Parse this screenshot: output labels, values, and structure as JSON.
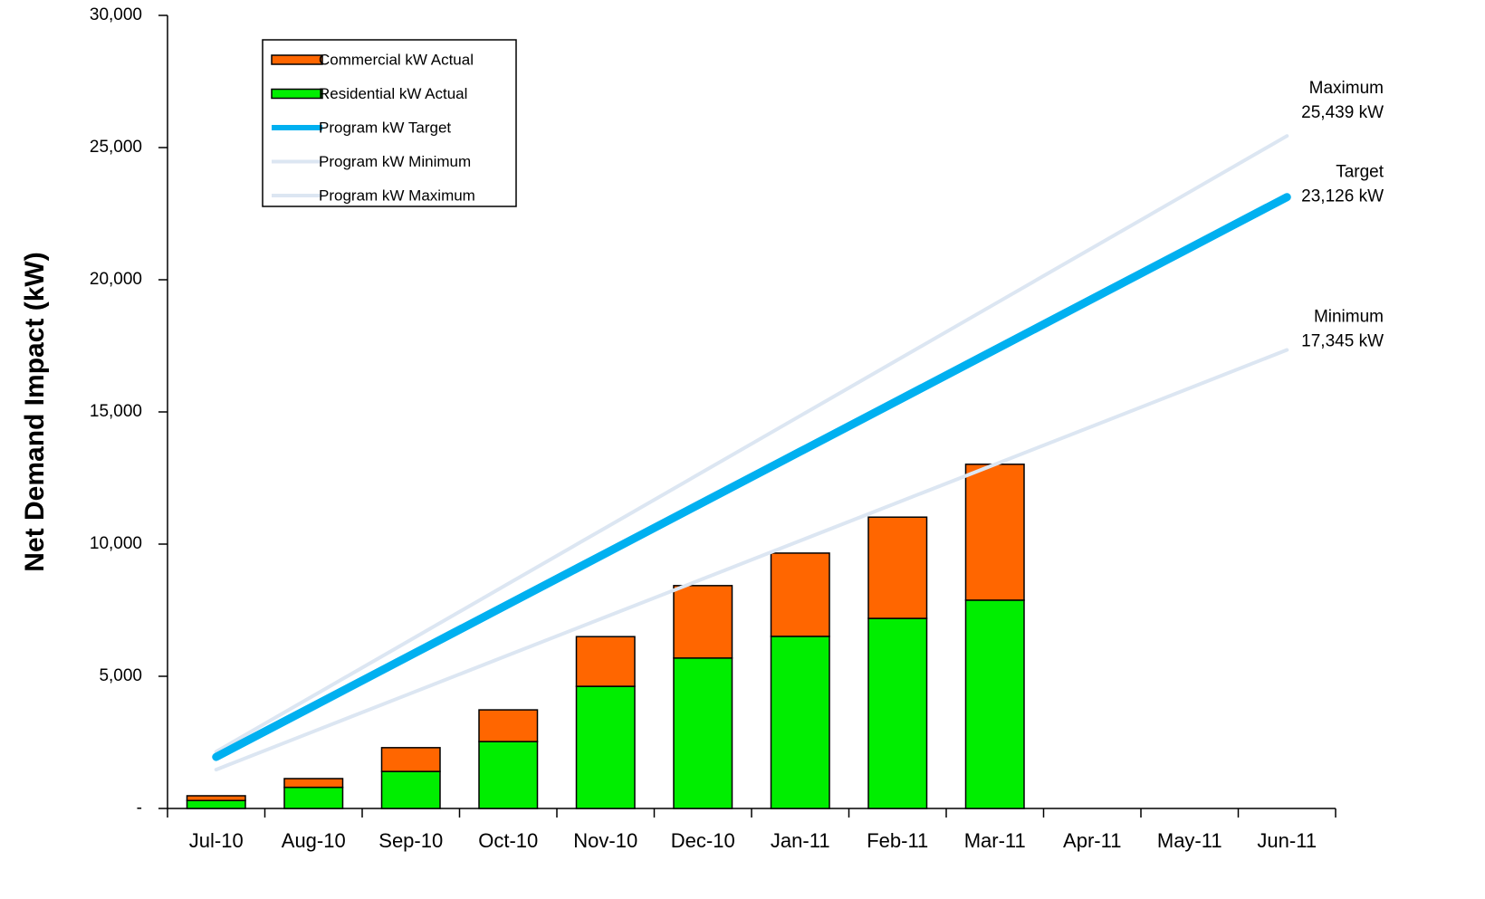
{
  "chart_data": {
    "type": "bar",
    "y_label": "Net Demand Impact (kW)",
    "categories": [
      "Jul-10",
      "Aug-10",
      "Sep-10",
      "Oct-10",
      "Nov-10",
      "Dec-10",
      "Jan-11",
      "Feb-11",
      "Mar-11",
      "Apr-11",
      "May-11",
      "Jun-11"
    ],
    "series": [
      {
        "name": "Commercial kW Actual",
        "kind": "bar",
        "color": "#ff6600",
        "values": [
          180,
          330,
          900,
          1200,
          1880,
          2740,
          3150,
          3830,
          5140,
          null,
          null,
          null
        ]
      },
      {
        "name": "Residential kW Actual",
        "kind": "bar",
        "color": "#00ee00",
        "values": [
          300,
          800,
          1400,
          2530,
          4620,
          5690,
          6510,
          7190,
          7880,
          null,
          null,
          null
        ]
      },
      {
        "name": "Program kW Target",
        "kind": "line",
        "color": "#00b0f0",
        "values": [
          1950,
          3875,
          5800,
          7725,
          9650,
          11575,
          13500,
          15425,
          17350,
          19275,
          21200,
          23126
        ]
      },
      {
        "name": "Program kW Minimum",
        "kind": "line",
        "color": "#dce6f2",
        "values": [
          1470,
          2913,
          4356,
          5799,
          7242,
          8685,
          10128,
          11571,
          13014,
          14457,
          15900,
          17345
        ]
      },
      {
        "name": "Program kW Maximum",
        "kind": "line",
        "color": "#dce6f2",
        "values": [
          2150,
          4267,
          6384,
          8501,
          10618,
          12735,
          14852,
          16969,
          19086,
          21203,
          23320,
          25439
        ]
      }
    ],
    "annotations": [
      {
        "series": 4,
        "lines": [
          "Maximum",
          "25,439 kW"
        ]
      },
      {
        "series": 2,
        "lines": [
          "Target",
          "23,126 kW"
        ]
      },
      {
        "series": 3,
        "lines": [
          "Minimum",
          "17,345 kW"
        ]
      }
    ],
    "ylim": [
      0,
      30000
    ],
    "yticks": [
      {
        "value": 0,
        "label": "-"
      },
      {
        "value": 5000,
        "label": "5,000"
      },
      {
        "value": 10000,
        "label": "10,000"
      },
      {
        "value": 15000,
        "label": "15,000"
      },
      {
        "value": 20000,
        "label": "20,000"
      },
      {
        "value": 25000,
        "label": "25,000"
      },
      {
        "value": 30000,
        "label": "30,000"
      }
    ],
    "legend": "upper left"
  }
}
